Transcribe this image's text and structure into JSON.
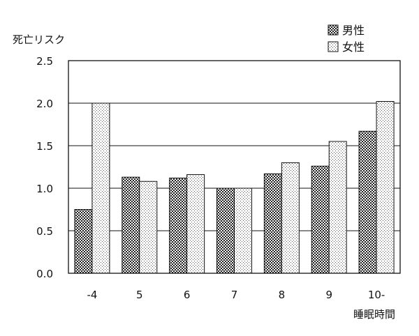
{
  "chart_data": {
    "type": "bar",
    "categories": [
      "-4",
      "5",
      "6",
      "7",
      "8",
      "9",
      "10-"
    ],
    "series": [
      {
        "name": "男性",
        "values": [
          0.75,
          1.13,
          1.12,
          1.0,
          1.17,
          1.26,
          1.67
        ]
      },
      {
        "name": "女性",
        "values": [
          2.0,
          1.08,
          1.16,
          1.0,
          1.3,
          1.55,
          2.02
        ]
      }
    ],
    "title": "",
    "xlabel": "睡眠時間",
    "ylabel": "死亡リスク",
    "ylim": [
      0,
      2.5
    ],
    "yticks": [
      "0.0",
      "0.5",
      "1.0",
      "1.5",
      "2.0",
      "2.5"
    ],
    "grid": true,
    "legend_position": "top-right"
  }
}
